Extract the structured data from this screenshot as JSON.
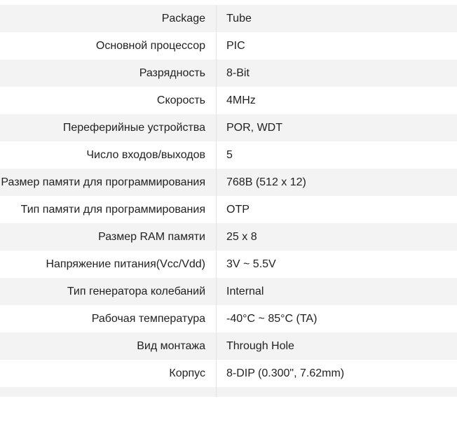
{
  "specs": [
    {
      "label": "Package",
      "value": "Tube"
    },
    {
      "label": "Основной процессор",
      "value": "PIC"
    },
    {
      "label": "Разрядность",
      "value": "8-Bit"
    },
    {
      "label": "Скорость",
      "value": "4MHz"
    },
    {
      "label": "Переферийные устройства",
      "value": "POR, WDT"
    },
    {
      "label": "Число входов/выходов",
      "value": "5"
    },
    {
      "label": "Размер памяти для программирования",
      "value": "768B (512 x 12)"
    },
    {
      "label": "Тип памяти для программирования",
      "value": "OTP"
    },
    {
      "label": "Размер RAM памяти",
      "value": "25 x 8"
    },
    {
      "label": "Напряжение питания(Vcc/Vdd)",
      "value": "3V ~ 5.5V"
    },
    {
      "label": "Тип генератора колебаний",
      "value": "Internal"
    },
    {
      "label": "Рабочая температура",
      "value": "-40°C ~ 85°C (TA)"
    },
    {
      "label": "Вид монтажа",
      "value": "Through Hole"
    },
    {
      "label": "Корпус",
      "value": "8-DIP (0.300\", 7.62mm)"
    },
    {
      "label": "",
      "value": ""
    }
  ]
}
